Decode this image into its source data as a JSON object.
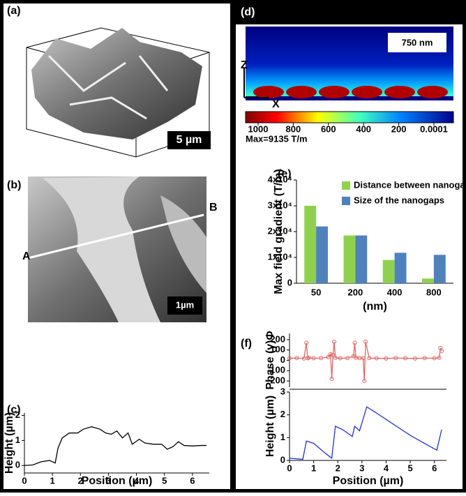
{
  "panels": {
    "a": {
      "label": "(a)",
      "scale_bar": "5 µm"
    },
    "b": {
      "label": "(b)",
      "point_a": "A",
      "point_b": "B",
      "scale_bar": "1µm"
    },
    "c": {
      "label": "(c)"
    },
    "d": {
      "label": "(d)",
      "inset_label": "750 nm",
      "axis_z": "Z",
      "axis_x": "X",
      "colorbar_ticks": [
        1000,
        800,
        600,
        400,
        200,
        0.0001
      ],
      "max_label": "Max=9135 T/m"
    },
    "e": {
      "label": "(e)"
    },
    "f": {
      "label": "(f)"
    }
  },
  "chart_data": [
    {
      "type": "line",
      "x_label": "Position (µm)",
      "y_label": "Height (µm)",
      "color": "#000000",
      "x": [
        0,
        0.3,
        0.6,
        0.9,
        1.1,
        1.2,
        1.35,
        1.6,
        1.9,
        2.1,
        2.4,
        2.7,
        2.9,
        3.1,
        3.3,
        3.5,
        3.7,
        3.85,
        4.1,
        4.3,
        4.6,
        4.9,
        5.1,
        5.3,
        5.5,
        5.7,
        6.0,
        6.3,
        6.5
      ],
      "values": [
        0,
        0.02,
        0.15,
        0.2,
        0.1,
        0.7,
        1.1,
        1.3,
        1.3,
        1.45,
        1.55,
        1.45,
        1.3,
        1.25,
        1.38,
        1.1,
        1.3,
        0.85,
        1.05,
        0.9,
        0.85,
        0.85,
        0.65,
        0.75,
        0.95,
        0.8,
        0.78,
        0.8,
        0.8
      ],
      "xlim": [
        0,
        6.6
      ],
      "ylim": [
        -0.3,
        2.1
      ],
      "xticks": [
        0,
        1,
        2,
        3,
        4,
        5,
        6
      ],
      "yticks": [
        0,
        1,
        2
      ]
    },
    {
      "type": "bar",
      "x_label": "(nm)",
      "y_label": "Max field gradient (T/m)",
      "categories": [
        "50",
        "200",
        "400",
        "800"
      ],
      "series": [
        {
          "name": "Distance between nanogaps",
          "color": "#8fd14f",
          "values": [
            30000,
            18500,
            9000,
            1800
          ]
        },
        {
          "name": "Size of the nanogaps",
          "color": "#4f81bd",
          "values": [
            22000,
            18500,
            11800,
            11000
          ]
        }
      ],
      "ylim": [
        0,
        40000
      ],
      "yticks": [
        0,
        {
          "value": 10000,
          "label": "1x10⁴"
        },
        {
          "value": 20000,
          "label": "2x10⁴"
        },
        {
          "value": 30000,
          "label": "3x10⁴"
        },
        {
          "value": 40000,
          "label": "4x10⁴"
        }
      ]
    },
    {
      "type": "line",
      "y_label": "Phase (γ)Φ",
      "color": "#e06666",
      "marker": "circle",
      "x": [
        0,
        0.3,
        0.6,
        0.7,
        0.75,
        0.8,
        1.0,
        1.3,
        1.6,
        1.7,
        1.75,
        1.8,
        1.85,
        1.9,
        2.1,
        2.4,
        2.65,
        2.7,
        2.75,
        2.9,
        3.05,
        3.1,
        3.15,
        3.3,
        3.6,
        4.0,
        4.4,
        4.8,
        5.2,
        5.6,
        6.0,
        6.2,
        6.25,
        6.3
      ],
      "values": [
        20,
        22,
        18,
        170,
        20,
        25,
        20,
        22,
        30,
        60,
        -180,
        50,
        180,
        25,
        20,
        22,
        40,
        170,
        25,
        22,
        20,
        -200,
        180,
        22,
        20,
        18,
        22,
        20,
        18,
        22,
        20,
        25,
        120,
        90
      ],
      "xlim": [
        0,
        6.5
      ],
      "ylim": [
        -260,
        260
      ],
      "yticks": [
        -200,
        -100,
        0,
        100,
        200
      ]
    },
    {
      "type": "line",
      "x_label": "Position (µm)",
      "y_label": "Height (µm)",
      "color": "#2233cc",
      "x": [
        0,
        0.55,
        0.7,
        1.0,
        1.5,
        1.75,
        1.9,
        2.2,
        2.6,
        2.7,
        2.9,
        3.2,
        3.5,
        4.0,
        4.5,
        5.0,
        5.5,
        6.1,
        6.3
      ],
      "values": [
        0.1,
        0.05,
        0.85,
        0.75,
        0.3,
        0.1,
        1.5,
        1.35,
        1.05,
        1.5,
        1.3,
        2.35,
        2.15,
        1.8,
        1.45,
        1.1,
        0.8,
        0.45,
        1.35
      ],
      "xlim": [
        0,
        6.5
      ],
      "ylim": [
        0,
        3
      ],
      "xticks": [
        0,
        1,
        2,
        3,
        4,
        5,
        6
      ],
      "yticks": [
        0,
        1,
        2,
        3
      ]
    }
  ]
}
